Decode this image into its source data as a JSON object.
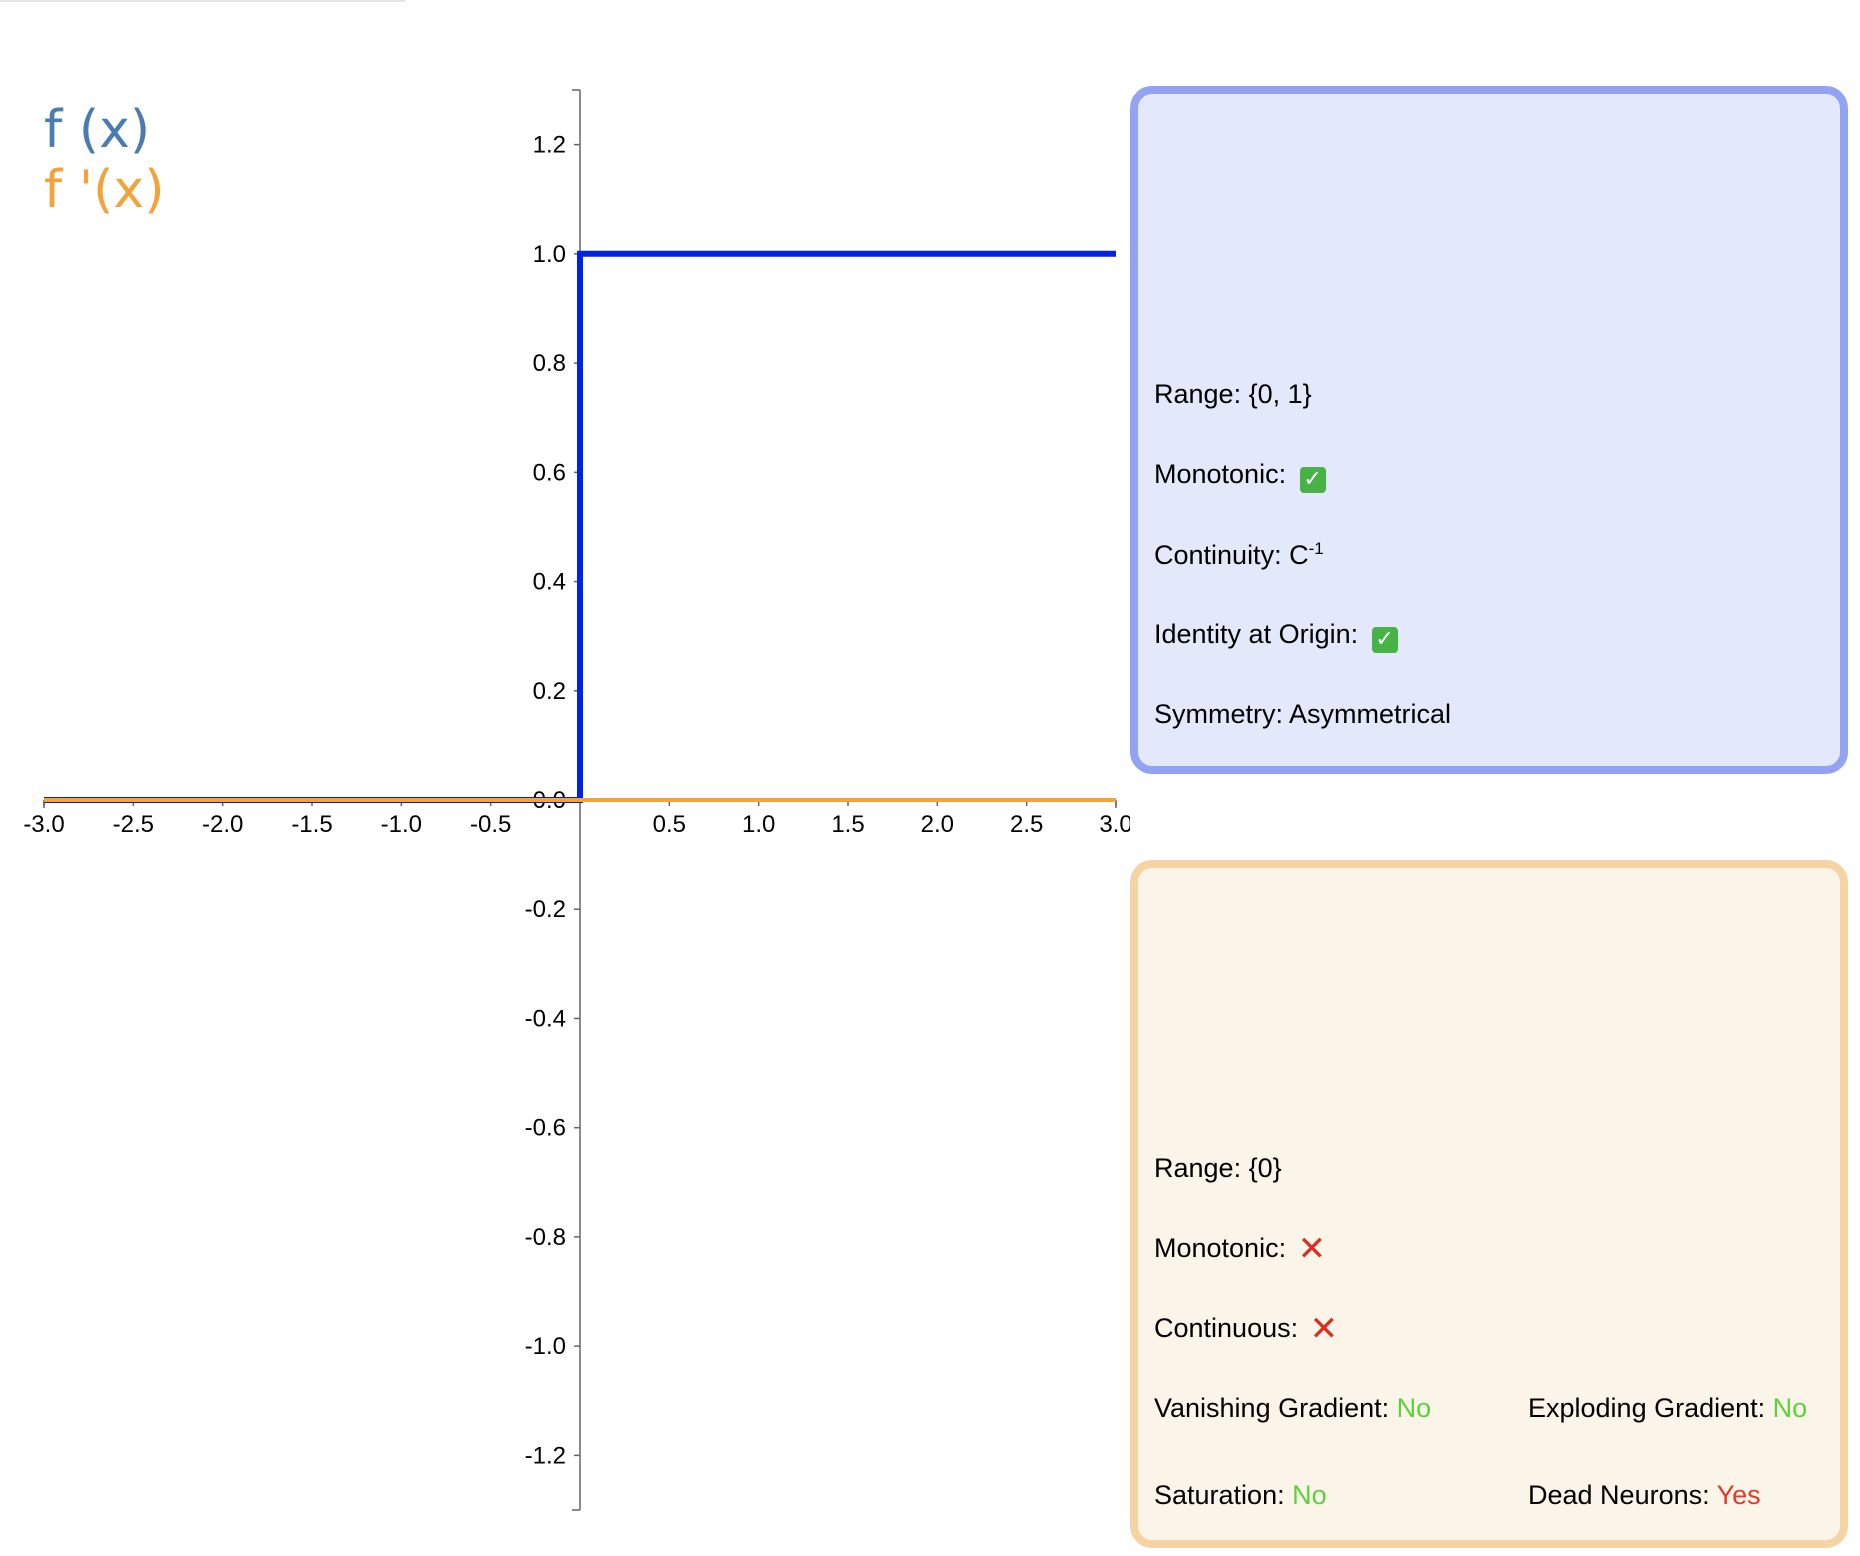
{
  "legend": {
    "f_label": "f (x)",
    "fp_label": "f '(x)"
  },
  "colors": {
    "f_line": "#0022e6",
    "fp_line": "#f2a33c",
    "legend_f": "#4a7cb0",
    "legend_fp": "#f2a33c",
    "good": "#5cd13c",
    "bad": "#e23a2a"
  },
  "chart_data": {
    "type": "line",
    "title": "",
    "xlabel": "",
    "ylabel": "",
    "xlim": [
      -3.0,
      3.0
    ],
    "ylim": [
      -1.3,
      1.3
    ],
    "xticks": [
      "-3.0",
      "-2.5",
      "-2.0",
      "-1.5",
      "-1.0",
      "-0.5",
      "0.5",
      "1.0",
      "1.5",
      "2.0",
      "2.5",
      "3.0"
    ],
    "xtick_values": [
      -3.0,
      -2.5,
      -2.0,
      -1.5,
      -1.0,
      -0.5,
      0.5,
      1.0,
      1.5,
      2.0,
      2.5,
      3.0
    ],
    "yticks": [
      "1.2",
      "1.0",
      "0.8",
      "0.6",
      "0.4",
      "0.2",
      "0.0",
      "-0.2",
      "-0.4",
      "-0.6",
      "-0.8",
      "-1.0",
      "-1.2"
    ],
    "ytick_values": [
      1.2,
      1.0,
      0.8,
      0.6,
      0.4,
      0.2,
      0.0,
      -0.2,
      -0.4,
      -0.6,
      -0.8,
      -1.0,
      -1.2
    ],
    "series": [
      {
        "name": "f (x)",
        "color": "#0022e6",
        "x": [
          -3.0,
          0.0,
          0.0,
          3.0
        ],
        "y": [
          0.0,
          0.0,
          1.0,
          1.0
        ]
      },
      {
        "name": "f '(x)",
        "color": "#f2a33c",
        "x": [
          -3.0,
          3.0
        ],
        "y": [
          0.0,
          0.0
        ]
      }
    ]
  },
  "panel_f": {
    "range": "Range: {0, 1}",
    "monotonic": "Monotonic:",
    "continuity_prefix": "Continuity: C",
    "continuity_sup": "-1",
    "identity": "Identity at Origin:",
    "symmetry": "Symmetry: Asymmetrical"
  },
  "panel_fp": {
    "range": "Range: {0}",
    "monotonic": "Monotonic:",
    "continuous": "Continuous:",
    "vanishing_label": "Vanishing Gradient:",
    "vanishing_value": "No",
    "exploding_label": "Exploding Gradient:",
    "exploding_value": "No",
    "saturation_label": "Saturation:",
    "saturation_value": "No",
    "dead_label": "Dead Neurons:",
    "dead_value": "Yes"
  }
}
